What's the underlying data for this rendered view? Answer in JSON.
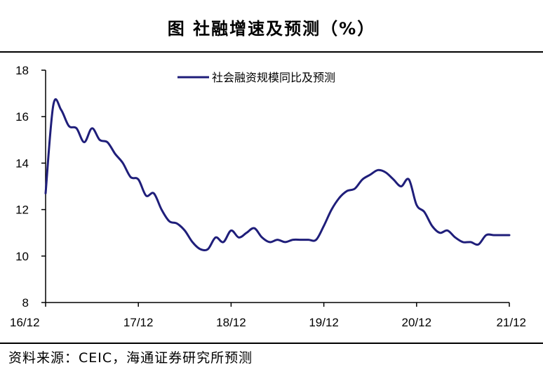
{
  "header": {
    "title": "图  社融增速及预测（%）"
  },
  "footer": {
    "source": "资料来源：CEIC，海通证券研究所预测"
  },
  "colors": {
    "series": "#1F1E7A",
    "axis": "#000000"
  },
  "chart_data": {
    "type": "line",
    "title": "图  社融增速及预测（%）",
    "xlabel": "",
    "ylabel": "",
    "ylim": [
      8,
      18
    ],
    "yticks": [
      8,
      10,
      12,
      14,
      16,
      18
    ],
    "xticks": [
      "16/12",
      "17/12",
      "18/12",
      "19/12",
      "20/12",
      "21/12"
    ],
    "xlim_months": [
      0,
      60
    ],
    "grid": false,
    "legend_position": "top-center",
    "series": [
      {
        "name": "社会融资规模同比及预测",
        "x": [
          0,
          1,
          2,
          3,
          4,
          5,
          6,
          7,
          8,
          9,
          10,
          11,
          12,
          13,
          14,
          15,
          16,
          17,
          18,
          19,
          20,
          21,
          22,
          23,
          24,
          25,
          26,
          27,
          28,
          29,
          30,
          31,
          32,
          33,
          34,
          35,
          36,
          37,
          38,
          39,
          40,
          41,
          42,
          43,
          44,
          45,
          46,
          47,
          48,
          49,
          50,
          51,
          52,
          53,
          54,
          55,
          56,
          57,
          58,
          59,
          60
        ],
        "values": [
          12.7,
          16.5,
          16.3,
          15.6,
          15.5,
          14.9,
          15.5,
          15.0,
          14.9,
          14.4,
          14.0,
          13.4,
          13.3,
          12.6,
          12.7,
          12.0,
          11.5,
          11.4,
          11.1,
          10.6,
          10.3,
          10.3,
          10.8,
          10.6,
          11.1,
          10.8,
          11.0,
          11.2,
          10.8,
          10.6,
          10.7,
          10.6,
          10.7,
          10.7,
          10.7,
          10.7,
          11.3,
          12.0,
          12.5,
          12.8,
          12.9,
          13.3,
          13.5,
          13.7,
          13.6,
          13.3,
          13.0,
          13.3,
          12.2,
          11.9,
          11.3,
          11.0,
          11.1,
          10.8,
          10.6,
          10.6,
          10.5,
          10.9,
          10.9,
          10.9,
          10.9
        ]
      }
    ]
  }
}
